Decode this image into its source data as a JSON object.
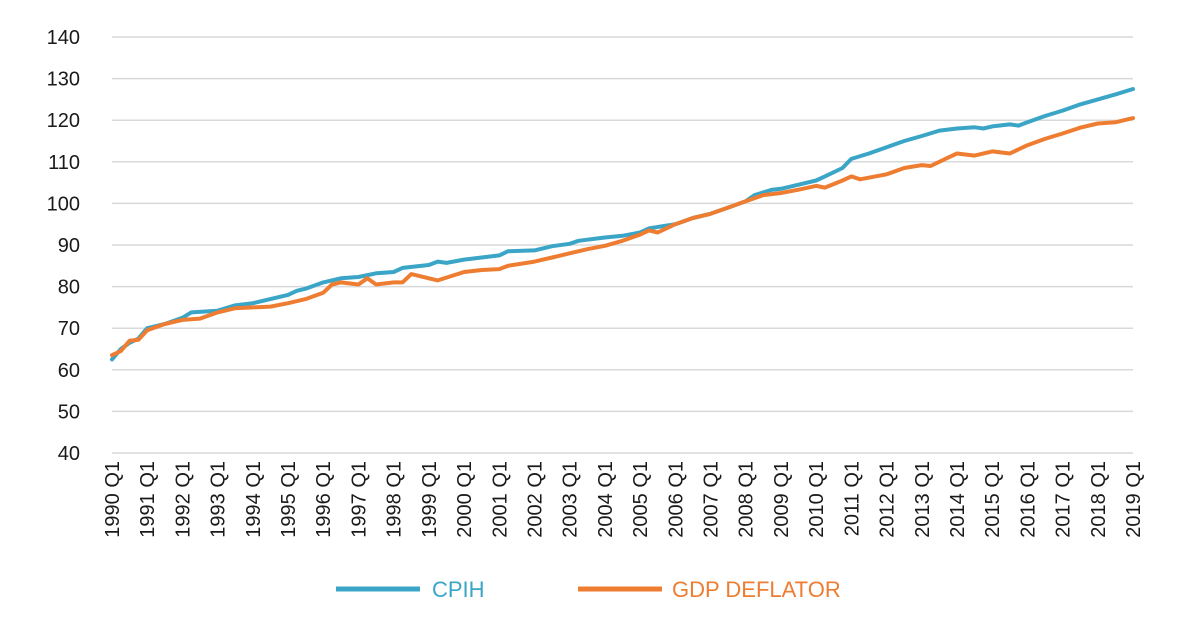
{
  "chart_data": {
    "type": "line",
    "title": "",
    "xlabel": "",
    "ylabel": "",
    "ylim": [
      40,
      140
    ],
    "yticks": [
      40,
      50,
      60,
      70,
      80,
      90,
      100,
      110,
      120,
      130,
      140
    ],
    "xrange": [
      1990.0,
      2019.0
    ],
    "xtick_labels": [
      "1990 Q1",
      "1991 Q1",
      "1992 Q1",
      "1993 Q1",
      "1994 Q1",
      "1995 Q1",
      "1996 Q1",
      "1997 Q1",
      "1998 Q1",
      "1999 Q1",
      "2000 Q1",
      "2001 Q1",
      "2002 Q1",
      "2003 Q1",
      "2004 Q1",
      "2005 Q1",
      "2006 Q1",
      "2007 Q1",
      "2008 Q1",
      "2009 Q1",
      "2010 Q1",
      "2011 Q1",
      "2012 Q1",
      "2013 Q1",
      "2014 Q1",
      "2015 Q1",
      "2016 Q1",
      "2017 Q1",
      "2018 Q1",
      "2019 Q1"
    ],
    "grid": "horizontal",
    "legend": "bottom",
    "series": [
      {
        "name": "CPIH",
        "color": "#3aa5c6",
        "points": [
          [
            1990.0,
            62.5
          ],
          [
            1990.25,
            65.0
          ],
          [
            1990.5,
            66.5
          ],
          [
            1990.75,
            67.5
          ],
          [
            1991.0,
            70.0
          ],
          [
            1991.5,
            71.0
          ],
          [
            1992.0,
            72.5
          ],
          [
            1992.25,
            73.8
          ],
          [
            1993.0,
            74.2
          ],
          [
            1993.5,
            75.5
          ],
          [
            1994.0,
            76.0
          ],
          [
            1994.5,
            77.0
          ],
          [
            1995.0,
            78.0
          ],
          [
            1995.25,
            79.0
          ],
          [
            1995.5,
            79.5
          ],
          [
            1996.0,
            81.0
          ],
          [
            1996.5,
            82.0
          ],
          [
            1997.0,
            82.3
          ],
          [
            1997.5,
            83.2
          ],
          [
            1998.0,
            83.5
          ],
          [
            1998.25,
            84.5
          ],
          [
            1999.0,
            85.2
          ],
          [
            1999.25,
            86.0
          ],
          [
            1999.5,
            85.7
          ],
          [
            2000.0,
            86.5
          ],
          [
            2000.5,
            87.0
          ],
          [
            2001.0,
            87.5
          ],
          [
            2001.25,
            88.5
          ],
          [
            2002.0,
            88.7
          ],
          [
            2002.5,
            89.7
          ],
          [
            2003.0,
            90.3
          ],
          [
            2003.25,
            91.0
          ],
          [
            2004.0,
            91.8
          ],
          [
            2004.5,
            92.2
          ],
          [
            2005.0,
            93.0
          ],
          [
            2005.25,
            94.0
          ],
          [
            2006.0,
            95.0
          ],
          [
            2006.5,
            96.5
          ],
          [
            2007.0,
            97.5
          ],
          [
            2007.5,
            99.0
          ],
          [
            2008.0,
            100.5
          ],
          [
            2008.25,
            102.0
          ],
          [
            2008.75,
            103.3
          ],
          [
            2009.0,
            103.5
          ],
          [
            2009.5,
            104.5
          ],
          [
            2010.0,
            105.5
          ],
          [
            2010.25,
            106.5
          ],
          [
            2010.75,
            108.5
          ],
          [
            2011.0,
            110.7
          ],
          [
            2011.5,
            112.0
          ],
          [
            2012.0,
            113.5
          ],
          [
            2012.5,
            115.0
          ],
          [
            2013.0,
            116.2
          ],
          [
            2013.5,
            117.5
          ],
          [
            2014.0,
            118.0
          ],
          [
            2014.5,
            118.3
          ],
          [
            2014.75,
            118.0
          ],
          [
            2015.0,
            118.5
          ],
          [
            2015.5,
            119.0
          ],
          [
            2015.75,
            118.7
          ],
          [
            2016.0,
            119.5
          ],
          [
            2016.5,
            121.0
          ],
          [
            2017.0,
            122.3
          ],
          [
            2017.5,
            123.8
          ],
          [
            2018.0,
            125.0
          ],
          [
            2018.5,
            126.2
          ],
          [
            2019.0,
            127.5
          ]
        ]
      },
      {
        "name": "GDP DEFLATOR",
        "color": "#ee7d31",
        "points": [
          [
            1990.0,
            63.5
          ],
          [
            1990.25,
            64.5
          ],
          [
            1990.5,
            67.0
          ],
          [
            1990.75,
            67.2
          ],
          [
            1991.0,
            69.5
          ],
          [
            1991.5,
            71.0
          ],
          [
            1992.0,
            72.0
          ],
          [
            1992.5,
            72.3
          ],
          [
            1993.0,
            73.8
          ],
          [
            1993.5,
            74.8
          ],
          [
            1994.0,
            75.0
          ],
          [
            1994.5,
            75.2
          ],
          [
            1995.0,
            76.0
          ],
          [
            1995.5,
            77.0
          ],
          [
            1996.0,
            78.5
          ],
          [
            1996.25,
            80.5
          ],
          [
            1996.5,
            81.0
          ],
          [
            1997.0,
            80.5
          ],
          [
            1997.25,
            82.0
          ],
          [
            1997.5,
            80.5
          ],
          [
            1998.0,
            81.0
          ],
          [
            1998.25,
            81.0
          ],
          [
            1998.5,
            83.0
          ],
          [
            1999.0,
            82.0
          ],
          [
            1999.25,
            81.5
          ],
          [
            2000.0,
            83.5
          ],
          [
            2000.5,
            84.0
          ],
          [
            2001.0,
            84.2
          ],
          [
            2001.25,
            85.0
          ],
          [
            2002.0,
            86.0
          ],
          [
            2002.5,
            87.0
          ],
          [
            2003.0,
            88.0
          ],
          [
            2003.5,
            89.0
          ],
          [
            2004.0,
            89.8
          ],
          [
            2004.5,
            91.0
          ],
          [
            2005.0,
            92.5
          ],
          [
            2005.25,
            93.5
          ],
          [
            2005.5,
            93.0
          ],
          [
            2006.0,
            95.0
          ],
          [
            2006.5,
            96.5
          ],
          [
            2007.0,
            97.5
          ],
          [
            2007.5,
            99.0
          ],
          [
            2008.0,
            100.5
          ],
          [
            2008.5,
            102.0
          ],
          [
            2009.0,
            102.5
          ],
          [
            2009.5,
            103.3
          ],
          [
            2010.0,
            104.2
          ],
          [
            2010.25,
            103.8
          ],
          [
            2010.75,
            105.5
          ],
          [
            2011.0,
            106.5
          ],
          [
            2011.25,
            105.8
          ],
          [
            2012.0,
            107.0
          ],
          [
            2012.5,
            108.5
          ],
          [
            2013.0,
            109.2
          ],
          [
            2013.25,
            109.0
          ],
          [
            2013.75,
            111.0
          ],
          [
            2014.0,
            112.0
          ],
          [
            2014.5,
            111.5
          ],
          [
            2015.0,
            112.5
          ],
          [
            2015.5,
            112.0
          ],
          [
            2016.0,
            114.0
          ],
          [
            2016.5,
            115.5
          ],
          [
            2017.0,
            116.8
          ],
          [
            2017.5,
            118.2
          ],
          [
            2018.0,
            119.2
          ],
          [
            2018.5,
            119.5
          ],
          [
            2019.0,
            120.5
          ]
        ]
      }
    ]
  }
}
